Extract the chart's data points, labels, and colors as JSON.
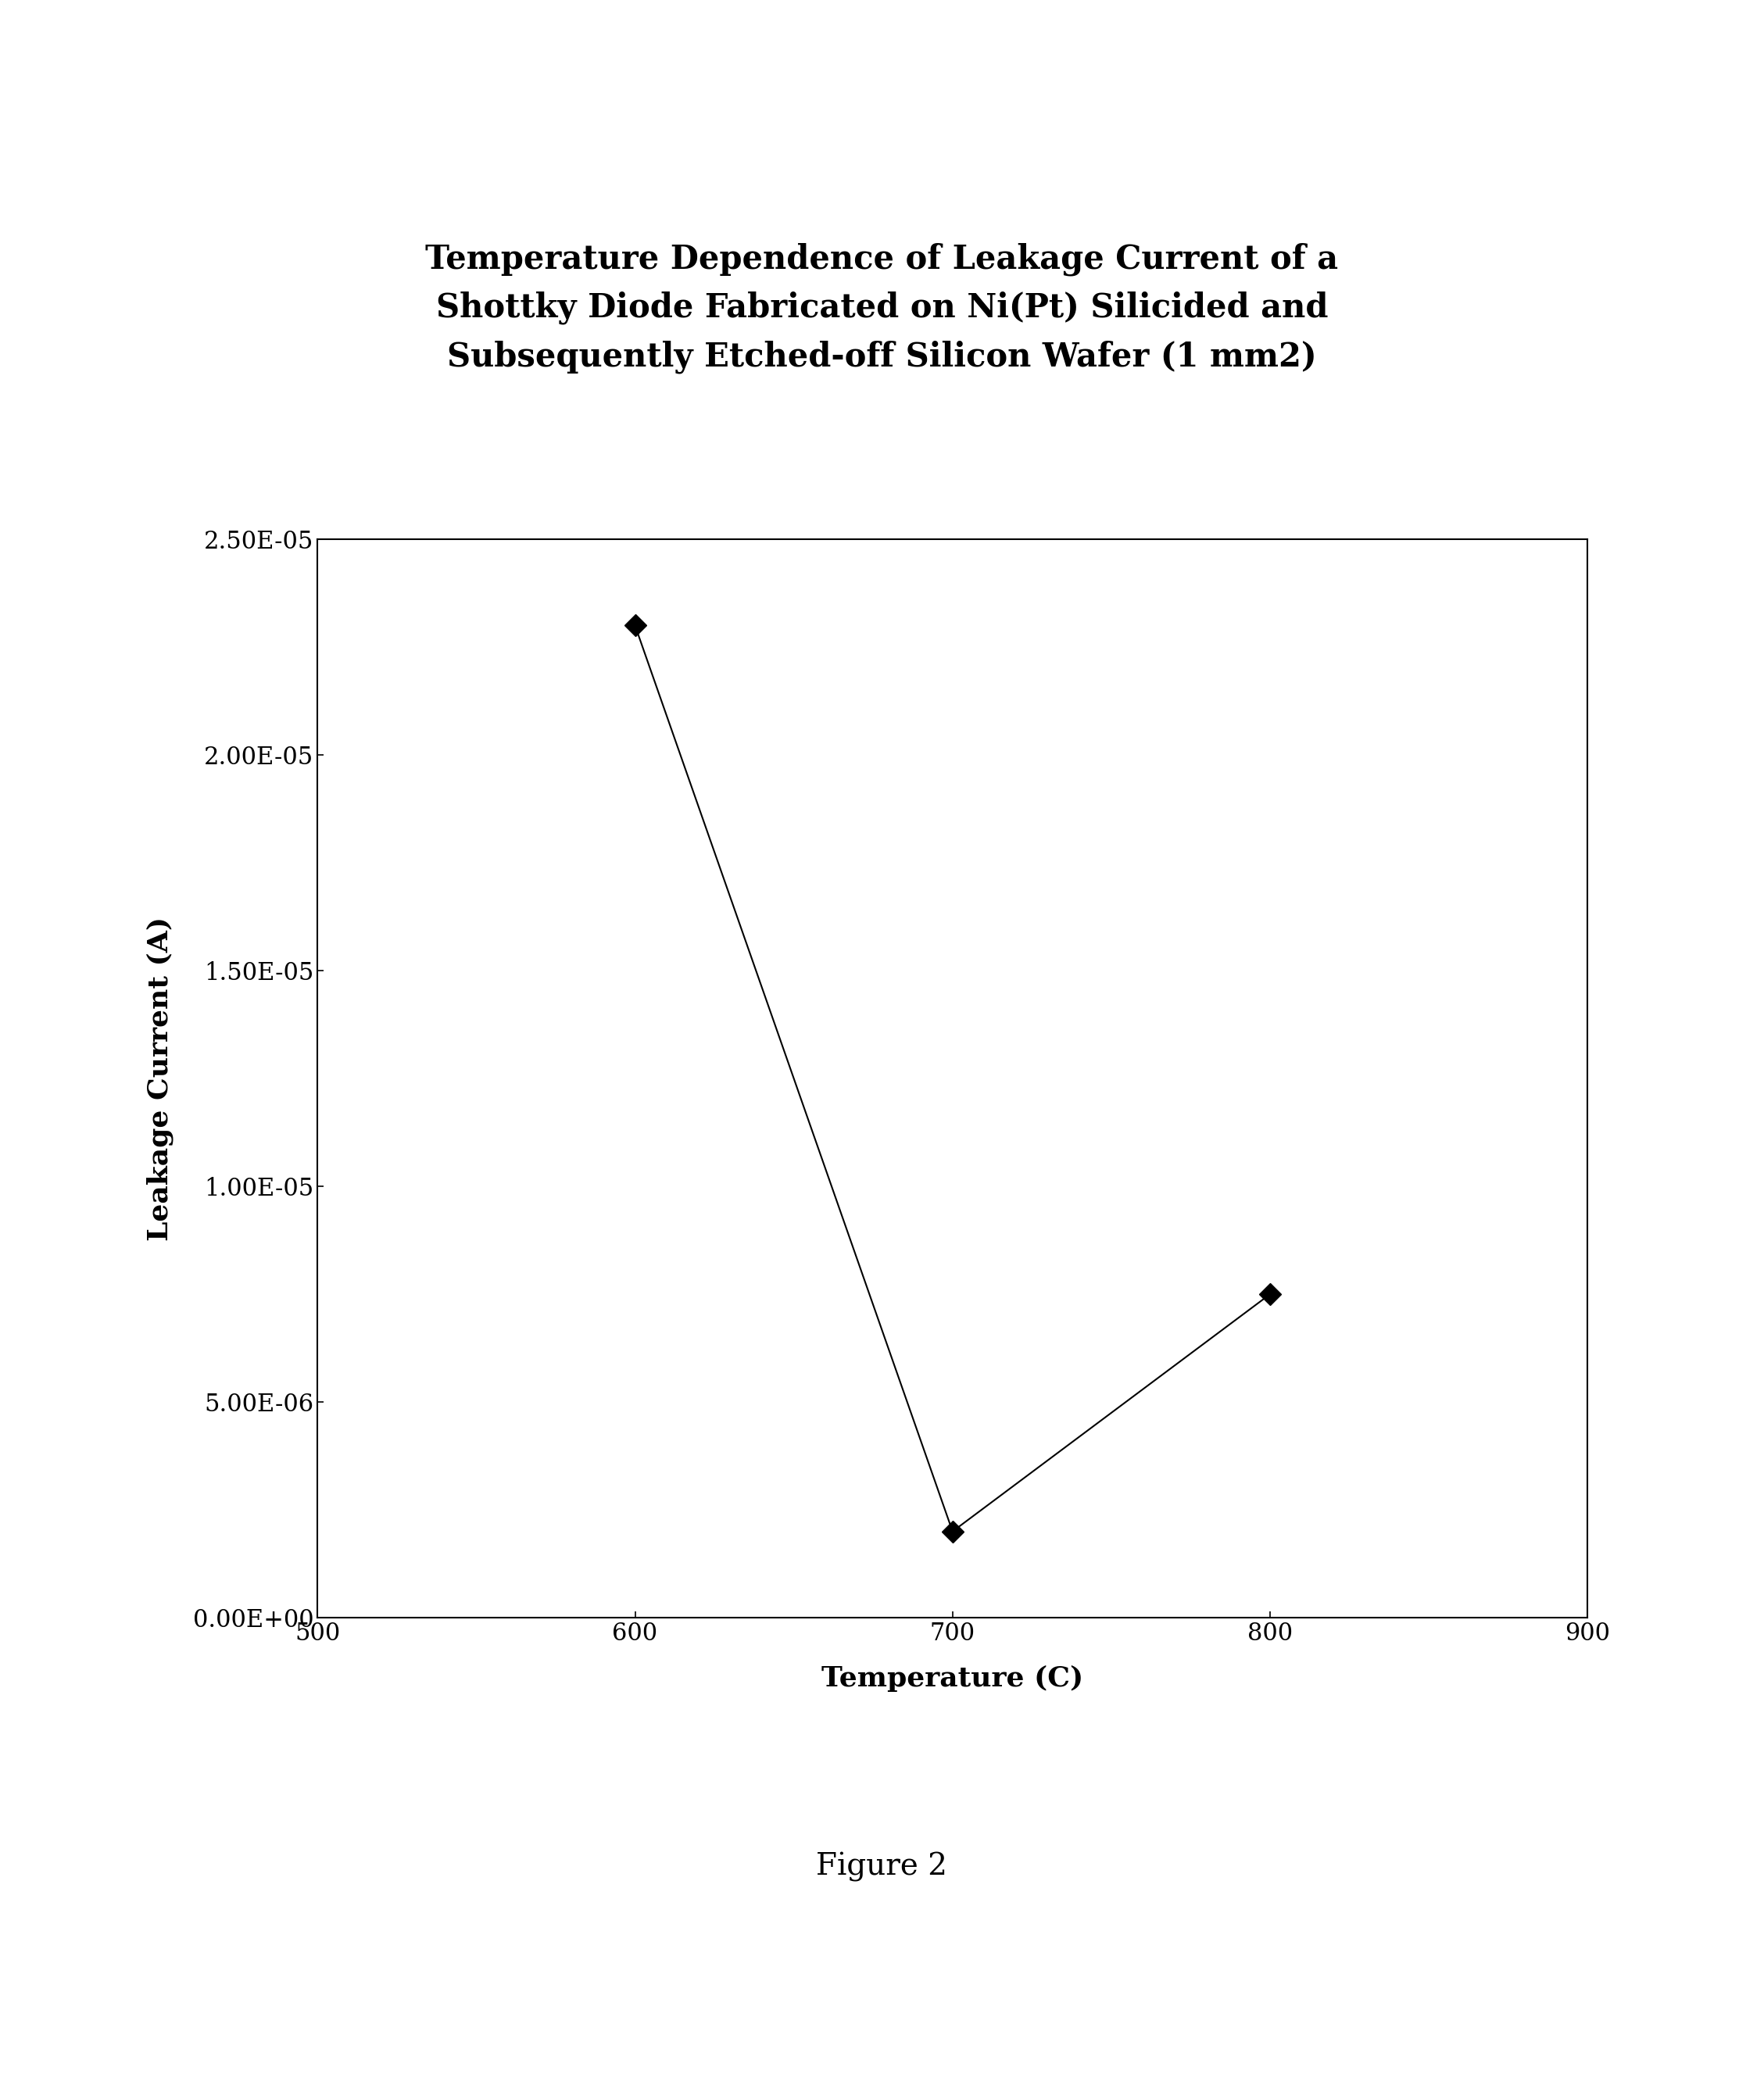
{
  "title_lines": [
    "Temperature Dependence of Leakage Current of a",
    "Shottky Diode Fabricated on Ni(Pt) Silicided and",
    "Subsequently Etched-off Silicon Wafer (1 mm2)"
  ],
  "xlabel": "Temperature (C)",
  "ylabel": "Leakage Current (A)",
  "x_data": [
    600,
    700,
    800
  ],
  "y_data": [
    2.3e-05,
    2e-06,
    7.5e-06
  ],
  "xlim": [
    500,
    900
  ],
  "ylim": [
    0,
    2.5e-05
  ],
  "yticks": [
    0.0,
    5e-06,
    1e-05,
    1.5e-05,
    2e-05,
    2.5e-05
  ],
  "ytick_labels": [
    "0.00E+00",
    "5.00E-06",
    "1.00E-05",
    "1.50E-05",
    "2.00E-05",
    "2.50E-05"
  ],
  "xticks": [
    500,
    600,
    700,
    800,
    900
  ],
  "figure_caption": "Figure 2",
  "line_color": "#000000",
  "marker_color": "#000000",
  "background_color": "#ffffff",
  "title_fontsize": 30,
  "axis_label_fontsize": 26,
  "tick_fontsize": 22,
  "caption_fontsize": 28
}
